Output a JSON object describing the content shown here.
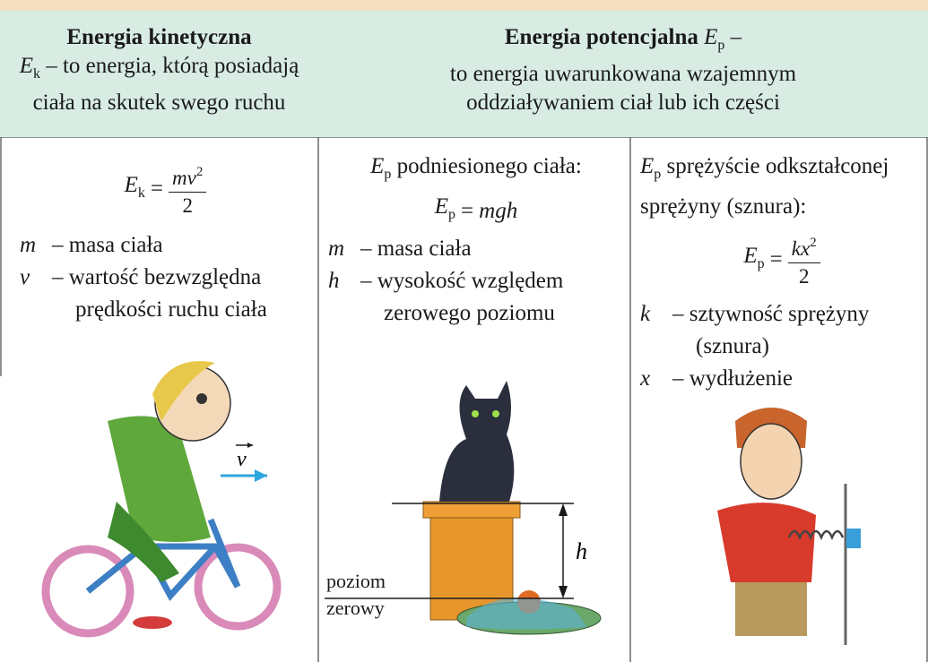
{
  "header": {
    "kinetic": {
      "title": "Energia kinetyczna",
      "symbol": "E",
      "subscript": "k",
      "definition": "– to energia, którą posiadają ciała na skutek swego ruchu"
    },
    "potential": {
      "title": "Energia potencjalna",
      "symbol": "E",
      "subscript": "p",
      "dash": "–",
      "definition": "to energia uwarunkowana wzajemnym oddziaływaniem ciał lub ich części"
    }
  },
  "kinetic": {
    "formula": {
      "lhs": "E",
      "lhs_sub": "k",
      "equals": "=",
      "numerator": "mv",
      "numerator_sup": "2",
      "denominator": "2"
    },
    "legend": [
      {
        "symbol": "m",
        "text": "– masa ciała"
      },
      {
        "symbol": "v",
        "text": "– wartość bezwzględna prędkości ruchu ciała"
      }
    ],
    "illustration": {
      "vector_label": "v"
    }
  },
  "raised_body": {
    "intro_symbol": "E",
    "intro_subscript": "p",
    "intro": "podniesionego ciała:",
    "formula": {
      "lhs": "E",
      "lhs_sub": "p",
      "equals": "=",
      "rhs": "mgh"
    },
    "legend": [
      {
        "symbol": "m",
        "text": "– masa ciała"
      },
      {
        "symbol": "h",
        "text": "– wysokość względem zerowego poziomu"
      }
    ],
    "illustration": {
      "height_label": "h",
      "reference_label": "poziom zerowy"
    }
  },
  "spring": {
    "intro_symbol": "E",
    "intro_subscript": "p",
    "intro": "sprężyście odkształconej sprężyny (sznura):",
    "formula": {
      "lhs": "E",
      "lhs_sub": "p",
      "equals": "=",
      "numerator": "kx",
      "numerator_sup": "2",
      "denominator": "2"
    },
    "legend": [
      {
        "symbol": "k",
        "text": "– sztywność sprężyny (sznura)"
      },
      {
        "symbol": "x",
        "text": "– wydłużenie"
      }
    ]
  }
}
